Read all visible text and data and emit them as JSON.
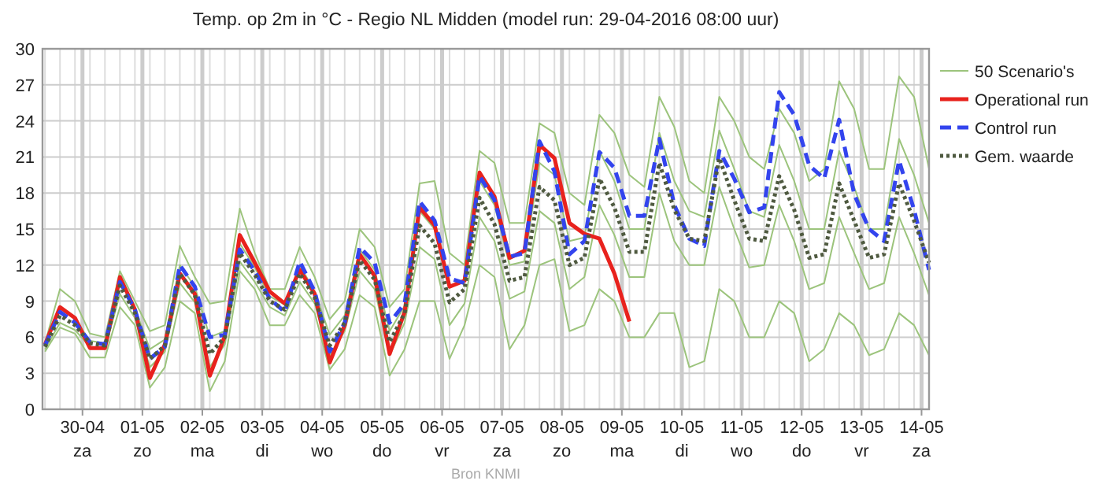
{
  "chart_data": {
    "type": "line",
    "title": "Temp. op 2m in °C - Regio NL Midden (model run: 29-04-2016 08:00 uur)",
    "annotations": [
      "Bron KNMI"
    ],
    "x": [
      "2016-04-29T09:00",
      "2016-04-29T15:00",
      "2016-04-29T21:00",
      "2016-04-30T03:00",
      "2016-04-30T09:00",
      "2016-04-30T15:00",
      "2016-04-30T21:00",
      "2016-05-01T03:00",
      "2016-05-01T09:00",
      "2016-05-01T15:00",
      "2016-05-01T21:00",
      "2016-05-02T03:00",
      "2016-05-02T09:00",
      "2016-05-02T15:00",
      "2016-05-02T21:00",
      "2016-05-03T03:00",
      "2016-05-03T09:00",
      "2016-05-03T15:00",
      "2016-05-03T21:00",
      "2016-05-04T03:00",
      "2016-05-04T09:00",
      "2016-05-04T15:00",
      "2016-05-04T21:00",
      "2016-05-05T03:00",
      "2016-05-05T09:00",
      "2016-05-05T15:00",
      "2016-05-05T21:00",
      "2016-05-06T03:00",
      "2016-05-06T09:00",
      "2016-05-06T15:00",
      "2016-05-06T21:00",
      "2016-05-07T03:00",
      "2016-05-07T09:00",
      "2016-05-07T15:00",
      "2016-05-07T21:00",
      "2016-05-08T03:00",
      "2016-05-08T09:00",
      "2016-05-08T15:00",
      "2016-05-08T21:00",
      "2016-05-09T03:00",
      "2016-05-09T09:00",
      "2016-05-09T15:00",
      "2016-05-09T21:00",
      "2016-05-10T03:00",
      "2016-05-10T09:00",
      "2016-05-10T15:00",
      "2016-05-10T21:00",
      "2016-05-11T03:00",
      "2016-05-11T09:00",
      "2016-05-11T15:00",
      "2016-05-11T21:00",
      "2016-05-12T03:00",
      "2016-05-12T09:00",
      "2016-05-12T15:00",
      "2016-05-12T21:00",
      "2016-05-13T03:00",
      "2016-05-13T09:00",
      "2016-05-13T15:00",
      "2016-05-13T21:00",
      "2016-05-14T03:00"
    ],
    "xlim": [
      "2016-04-29T08:00",
      "2016-05-14T03:00"
    ],
    "xticks": [
      {
        "value": "2016-04-30",
        "label": "30-04\nza"
      },
      {
        "value": "2016-05-01",
        "label": "01-05\nzo"
      },
      {
        "value": "2016-05-02",
        "label": "02-05\nma"
      },
      {
        "value": "2016-05-03",
        "label": "03-05\ndi"
      },
      {
        "value": "2016-05-04",
        "label": "04-05\nwo"
      },
      {
        "value": "2016-05-05",
        "label": "05-05\ndo"
      },
      {
        "value": "2016-05-06",
        "label": "06-05\nvr"
      },
      {
        "value": "2016-05-07",
        "label": "07-05\nza"
      },
      {
        "value": "2016-05-08",
        "label": "08-05\nzo"
      },
      {
        "value": "2016-05-09",
        "label": "09-05\nma"
      },
      {
        "value": "2016-05-10",
        "label": "10-05\ndi"
      },
      {
        "value": "2016-05-11",
        "label": "11-05\nwo"
      },
      {
        "value": "2016-05-12",
        "label": "12-05\ndo"
      },
      {
        "value": "2016-05-13",
        "label": "13-05\nvr"
      },
      {
        "value": "2016-05-14",
        "label": "14-05\nza"
      }
    ],
    "ylim": [
      0,
      30
    ],
    "yticks": [
      0,
      3,
      6,
      9,
      12,
      15,
      18,
      21,
      24,
      27,
      30
    ],
    "grid": true,
    "legend": "right",
    "series": [
      {
        "name": "50 Scenario's",
        "color": "#9cc47c",
        "line_style": "solid",
        "values": [
          5.5,
          10,
          9,
          6.3,
          6,
          11.5,
          9,
          6.5,
          7,
          13.6,
          11,
          8.8,
          9,
          16.7,
          13,
          10,
          10,
          13.5,
          11,
          7.5,
          9,
          15,
          13.5,
          8.5,
          10,
          18.8,
          19,
          13,
          12,
          21.5,
          20.5,
          15.5,
          15.5,
          23.8,
          23,
          18,
          17,
          24.5,
          23,
          19.5,
          18.5,
          26,
          23.5,
          19,
          18,
          26,
          24,
          21,
          20,
          25,
          23,
          19,
          20,
          27.3,
          25,
          20,
          20,
          27.7,
          26,
          20
        ]
      },
      {
        "color": "#9cc47c",
        "line_style": "solid",
        "values": [
          4.8,
          6.8,
          6.3,
          4.3,
          4.3,
          8.5,
          7,
          1.8,
          3.5,
          9,
          8,
          1.5,
          4,
          11.5,
          10,
          7,
          7,
          9.5,
          8,
          3.3,
          5,
          9.5,
          8.5,
          2.8,
          5,
          9,
          9,
          4.2,
          7,
          12,
          11,
          5,
          7,
          12,
          12.5,
          6.5,
          7,
          10,
          9,
          6,
          6,
          8,
          8,
          3.5,
          4,
          10,
          9,
          6,
          6,
          9,
          8,
          4,
          5,
          8,
          7,
          4.5,
          5,
          8,
          7,
          4.5
        ]
      },
      {
        "color": "#9cc47c",
        "line_style": "solid",
        "values": [
          5.3,
          8.6,
          7.5,
          5.7,
          5.5,
          10.8,
          8.4,
          5.0,
          5.8,
          12.0,
          10.2,
          6.0,
          6.5,
          13.8,
          11.8,
          9.4,
          8.7,
          12.0,
          9.8,
          6.2,
          7.8,
          13.3,
          11.6,
          6.5,
          8.6,
          16.5,
          15.0,
          10.2,
          10.8,
          19.0,
          17.0,
          12.0,
          12.3,
          20.5,
          19.5,
          14.0,
          14.3,
          21.5,
          19.0,
          15.0,
          15.0,
          23.0,
          19.0,
          16.5,
          16.0,
          23.2,
          20.0,
          16.5,
          16.0,
          22.0,
          19.0,
          15.0,
          15.0,
          21.5,
          18.5,
          15.0,
          15.0,
          22.5,
          19.5,
          15.5
        ]
      },
      {
        "color": "#9cc47c",
        "line_style": "solid",
        "values": [
          5.0,
          7.2,
          6.6,
          5.2,
          5.0,
          9.6,
          7.6,
          3.5,
          4.8,
          10.5,
          8.9,
          3.5,
          5.4,
          12.3,
          10.6,
          8.5,
          7.8,
          10.6,
          8.8,
          4.5,
          6.5,
          11.5,
          10.0,
          4.5,
          7.2,
          13.5,
          12.5,
          7.0,
          8.8,
          16.0,
          14.0,
          9.2,
          9.8,
          16.5,
          15.5,
          10.0,
          11.0,
          17.0,
          14.5,
          11.0,
          11.0,
          18.0,
          14.0,
          12.0,
          12.0,
          18.5,
          15.0,
          11.8,
          12.0,
          17.0,
          14.0,
          10.0,
          10.5,
          16.0,
          13.0,
          10.0,
          10.5,
          16.0,
          13.0,
          9.5
        ]
      },
      {
        "name": "Operational run",
        "color": "#e8221d",
        "line_style": "solid",
        "values": [
          5.4,
          8.5,
          7.6,
          5.1,
          5.1,
          11.0,
          8.3,
          2.6,
          5.4,
          11.3,
          9.6,
          2.8,
          6.1,
          14.5,
          12.2,
          9.8,
          8.8,
          11.6,
          9.6,
          3.9,
          7.0,
          12.9,
          11.1,
          4.6,
          8.1,
          16.8,
          15.3,
          10.2,
          10.7,
          19.7,
          17.7,
          12.6,
          13.2,
          22.0,
          20.9,
          15.5,
          14.6,
          14.2,
          11.3,
          7.3,
          null,
          null,
          null,
          null,
          null,
          null,
          null,
          null,
          null,
          null,
          null,
          null,
          null,
          null,
          null,
          null,
          null,
          null,
          null,
          null
        ]
      },
      {
        "name": "Control run",
        "color": "#3344ee",
        "line_style": "dashed",
        "values": [
          5.3,
          8.1,
          7.2,
          5.6,
          5.4,
          10.6,
          8.3,
          4.2,
          5.2,
          12.0,
          10.2,
          6.0,
          6.2,
          13.3,
          11.5,
          9.2,
          8.1,
          12.3,
          9.8,
          4.8,
          7.2,
          13.5,
          12.2,
          7.2,
          8.8,
          17.3,
          15.7,
          10.9,
          10.5,
          19.4,
          17.4,
          12.7,
          13.0,
          22.3,
          19.8,
          12.9,
          14.0,
          21.4,
          20.1,
          16.1,
          16.1,
          22.5,
          17.0,
          14.2,
          13.6,
          21.5,
          19.2,
          16.4,
          16.8,
          26.4,
          24.5,
          20.3,
          19.2,
          24.1,
          17.9,
          15.0,
          14.0,
          20.7,
          16.6,
          11.6
        ]
      },
      {
        "name": "Gem. waarde",
        "color": "#4f5a40",
        "line_style": "dotted",
        "values": [
          5.2,
          7.8,
          7.0,
          5.5,
          5.3,
          10.3,
          8.0,
          4.2,
          5.3,
          11.3,
          9.5,
          4.6,
          6.0,
          13.0,
          11.2,
          9.0,
          8.3,
          11.3,
          9.3,
          5.3,
          7.2,
          12.4,
          10.8,
          5.6,
          8.0,
          15.3,
          13.8,
          8.9,
          10.0,
          17.6,
          15.4,
          10.7,
          11.0,
          18.5,
          17.4,
          12.0,
          12.6,
          19.2,
          16.8,
          13.1,
          13.1,
          20.5,
          16.6,
          14.2,
          14.0,
          20.9,
          17.4,
          14.2,
          14.0,
          19.4,
          16.6,
          12.6,
          12.9,
          18.8,
          15.7,
          12.6,
          12.9,
          18.8,
          15.7,
          12.2
        ]
      }
    ]
  }
}
